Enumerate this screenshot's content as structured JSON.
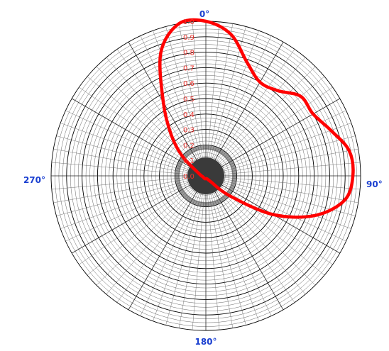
{
  "chart_data": {
    "type": "polar-line",
    "angle_labels": [
      {
        "angle": 0,
        "text": "0°"
      },
      {
        "angle": 90,
        "text": "90°"
      },
      {
        "angle": 180,
        "text": "180°"
      },
      {
        "angle": 270,
        "text": "270°"
      }
    ],
    "radial_ticks": [
      "1.0",
      "0.9",
      "0.8",
      "0.7",
      "0.6",
      "0.5",
      "0.4",
      "0.3",
      "0.2",
      "0.1",
      "0.0"
    ],
    "rlim": [
      0,
      1.0
    ],
    "grid": true,
    "series": [
      {
        "color": "#ff0000",
        "points": [
          {
            "angle": 0,
            "r": 1.0
          },
          {
            "angle": 10,
            "r": 0.93
          },
          {
            "angle": 20,
            "r": 0.78
          },
          {
            "angle": 30,
            "r": 0.7
          },
          {
            "angle": 40,
            "r": 0.72
          },
          {
            "angle": 50,
            "r": 0.8
          },
          {
            "angle": 60,
            "r": 0.8
          },
          {
            "angle": 70,
            "r": 0.86
          },
          {
            "angle": 80,
            "r": 0.94
          },
          {
            "angle": 90,
            "r": 0.95
          },
          {
            "angle": 100,
            "r": 0.91
          },
          {
            "angle": 110,
            "r": 0.75
          },
          {
            "angle": 120,
            "r": 0.5
          },
          {
            "angle": 130,
            "r": 0.2
          },
          {
            "angle": 140,
            "r": 0.05
          },
          {
            "angle": 160,
            "r": 0.02
          },
          {
            "angle": 200,
            "r": 0.02
          },
          {
            "angle": 250,
            "r": 0.02
          },
          {
            "angle": 290,
            "r": 0.05
          },
          {
            "angle": 310,
            "r": 0.2
          },
          {
            "angle": 320,
            "r": 0.35
          },
          {
            "angle": 330,
            "r": 0.55
          },
          {
            "angle": 340,
            "r": 0.85
          },
          {
            "angle": 350,
            "r": 1.0
          }
        ]
      }
    ]
  }
}
